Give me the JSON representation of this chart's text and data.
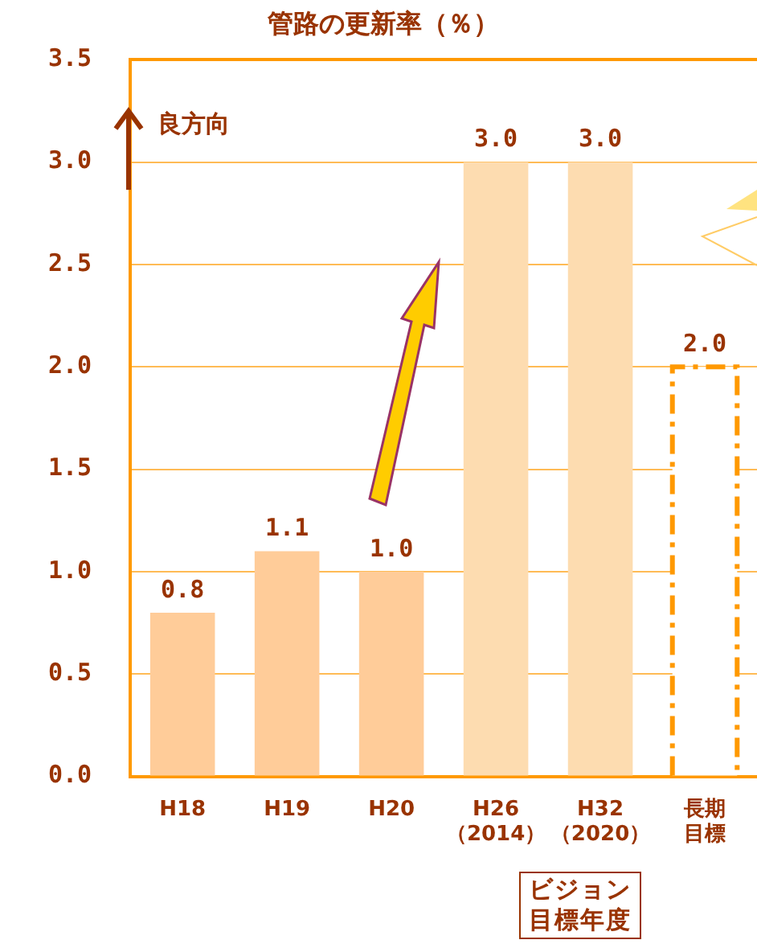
{
  "chart_data": {
    "type": "bar",
    "title": "管路の更新率（％）",
    "categories": [
      "H18",
      "H19",
      "H20",
      "H26\n（2014）",
      "H32\n（2020）",
      "長期目標"
    ],
    "values": [
      0.8,
      1.1,
      1.0,
      3.0,
      3.0,
      2.0
    ],
    "value_labels": [
      "0.8",
      "1.1",
      "1.0",
      "3.0",
      "3.0",
      "2.0"
    ],
    "colors": [
      "#ffcc99",
      "#ffcc99",
      "#ffcc99",
      "#fddcb0",
      "#fddcb0",
      "#ffffff"
    ],
    "ylim": [
      0,
      3.5
    ],
    "yticks": [
      {
        "value": 0,
        "label": "0.0"
      },
      {
        "value": 0.5,
        "label": "0.5"
      },
      {
        "value": 1,
        "label": "1.0"
      },
      {
        "value": 1.5,
        "label": "1.5"
      },
      {
        "value": 2,
        "label": "2.0"
      },
      {
        "value": 2.5,
        "label": "2.5"
      },
      {
        "value": 3,
        "label": "3.0"
      },
      {
        "value": 3.5,
        "label": "3.5"
      }
    ],
    "grid": "y",
    "annotations": [
      "良方向",
      "ビジョン目標年度"
    ]
  }
}
